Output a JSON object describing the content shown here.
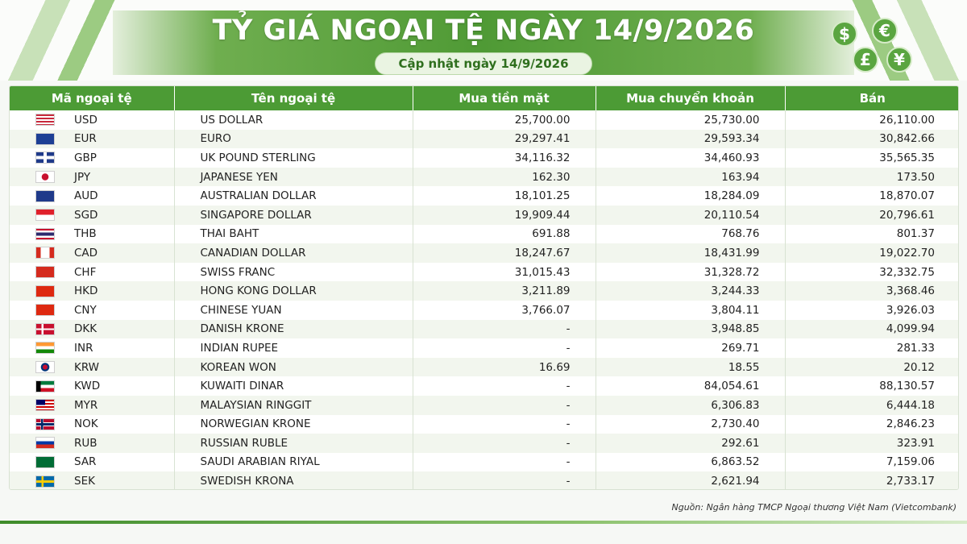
{
  "header": {
    "title": "TỶ GIÁ NGOẠI TỆ NGÀY 14/9/2026",
    "subtitle": "Cập nhật ngày 14/9/2026",
    "icons": [
      "dollar-icon",
      "euro-icon",
      "pound-icon",
      "yen-icon"
    ],
    "coin_symbols": [
      "$",
      "€",
      "£",
      "¥"
    ]
  },
  "colors": {
    "header_green": "#4c9b35",
    "row_alt": "#f2f6ee"
  },
  "table": {
    "columns": [
      "Mã ngoại tệ",
      "Tên ngoại tệ",
      "Mua tiền mặt",
      "Mua chuyển khoản",
      "Bán"
    ],
    "rows": [
      {
        "code": "USD",
        "name": "US DOLLAR",
        "cash": "25,700.00",
        "transfer": "25,730.00",
        "sell": "26,110.00"
      },
      {
        "code": "EUR",
        "name": "EURO",
        "cash": "29,297.41",
        "transfer": "29,593.34",
        "sell": "30,842.66"
      },
      {
        "code": "GBP",
        "name": "UK POUND STERLING",
        "cash": "34,116.32",
        "transfer": "34,460.93",
        "sell": "35,565.35"
      },
      {
        "code": "JPY",
        "name": "JAPANESE YEN",
        "cash": "162.30",
        "transfer": "163.94",
        "sell": "173.50"
      },
      {
        "code": "AUD",
        "name": "AUSTRALIAN DOLLAR",
        "cash": "18,101.25",
        "transfer": "18,284.09",
        "sell": "18,870.07"
      },
      {
        "code": "SGD",
        "name": "SINGAPORE DOLLAR",
        "cash": "19,909.44",
        "transfer": "20,110.54",
        "sell": "20,796.61"
      },
      {
        "code": "THB",
        "name": "THAI BAHT",
        "cash": "691.88",
        "transfer": "768.76",
        "sell": "801.37"
      },
      {
        "code": "CAD",
        "name": "CANADIAN DOLLAR",
        "cash": "18,247.67",
        "transfer": "18,431.99",
        "sell": "19,022.70"
      },
      {
        "code": "CHF",
        "name": "SWISS FRANC",
        "cash": "31,015.43",
        "transfer": "31,328.72",
        "sell": "32,332.75"
      },
      {
        "code": "HKD",
        "name": "HONG KONG DOLLAR",
        "cash": "3,211.89",
        "transfer": "3,244.33",
        "sell": "3,368.46"
      },
      {
        "code": "CNY",
        "name": "CHINESE YUAN",
        "cash": "3,766.07",
        "transfer": "3,804.11",
        "sell": "3,926.03"
      },
      {
        "code": "DKK",
        "name": "DANISH KRONE",
        "cash": "-",
        "transfer": "3,948.85",
        "sell": "4,099.94"
      },
      {
        "code": "INR",
        "name": "INDIAN RUPEE",
        "cash": "-",
        "transfer": "269.71",
        "sell": "281.33"
      },
      {
        "code": "KRW",
        "name": "KOREAN WON",
        "cash": "16.69",
        "transfer": "18.55",
        "sell": "20.12"
      },
      {
        "code": "KWD",
        "name": "KUWAITI DINAR",
        "cash": "-",
        "transfer": "84,054.61",
        "sell": "88,130.57"
      },
      {
        "code": "MYR",
        "name": "MALAYSIAN RINGGIT",
        "cash": "-",
        "transfer": "6,306.83",
        "sell": "6,444.18"
      },
      {
        "code": "NOK",
        "name": "NORWEGIAN KRONE",
        "cash": "-",
        "transfer": "2,730.40",
        "sell": "2,846.23"
      },
      {
        "code": "RUB",
        "name": "RUSSIAN RUBLE",
        "cash": "-",
        "transfer": "292.61",
        "sell": "323.91"
      },
      {
        "code": "SAR",
        "name": "SAUDI ARABIAN RIYAL",
        "cash": "-",
        "transfer": "6,863.52",
        "sell": "7,159.06"
      },
      {
        "code": "SEK",
        "name": "SWEDISH KRONA",
        "cash": "-",
        "transfer": "2,621.94",
        "sell": "2,733.17"
      }
    ]
  },
  "footer": {
    "source": "Nguồn: Ngân hàng TMCP Ngoại thương Việt Nam (Vietcombank)"
  }
}
